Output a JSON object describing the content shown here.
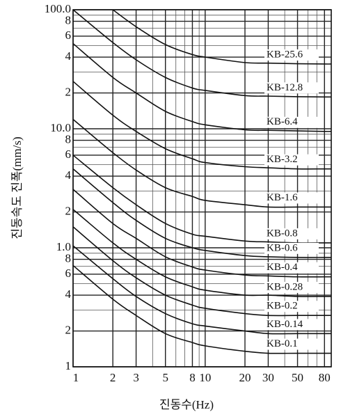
{
  "chart_data": {
    "type": "line",
    "x_label": "진동수(Hz)",
    "y_label": "진동속도 진폭(mm/s)",
    "x_log": true,
    "y_log": true,
    "grid": true,
    "minor_grid": true,
    "xlim": [
      1,
      90
    ],
    "ylim": [
      0.1,
      100
    ],
    "xticks": [
      1,
      2,
      3,
      5,
      8,
      10,
      20,
      30,
      50,
      80
    ],
    "yticks": [
      {
        "value": 100,
        "label": "100.0"
      },
      {
        "value": 80,
        "label": "8"
      },
      {
        "value": 60,
        "label": "6"
      },
      {
        "value": 40,
        "label": "4"
      },
      {
        "value": 20,
        "label": "2"
      },
      {
        "value": 10,
        "label": "10.0"
      },
      8,
      6,
      4,
      2,
      {
        "value": 1,
        "label": "1.0"
      },
      {
        "value": 0.8,
        "label": "8"
      },
      {
        "value": 0.6,
        "label": "6"
      },
      {
        "value": 0.4,
        "label": "4"
      },
      {
        "value": 0.2,
        "label": "2"
      },
      {
        "value": 0.1,
        "label": "1"
      }
    ],
    "x": [
      1,
      2,
      3,
      5,
      8,
      10,
      20,
      30,
      50,
      80,
      90
    ],
    "series": [
      {
        "name": "KB-25.6",
        "color": "#111",
        "values": [
          null,
          100,
          72,
          51,
          42,
          40,
          36,
          35.6,
          35.2,
          35,
          35
        ]
      },
      {
        "name": "KB-12.8",
        "color": "#111",
        "values": [
          100,
          53,
          38,
          27,
          22,
          21,
          19,
          18.8,
          18.6,
          18.5,
          18.5
        ]
      },
      {
        "name": "KB-6.4",
        "color": "#111",
        "values": [
          52,
          27,
          20,
          14,
          11.5,
          10.8,
          9.8,
          9.7,
          9.6,
          9.5,
          9.5
        ]
      },
      {
        "name": "KB-3.2",
        "color": "#111",
        "values": [
          25,
          13,
          9.5,
          6.8,
          5.6,
          5.2,
          4.8,
          4.7,
          4.6,
          4.6,
          4.6
        ]
      },
      {
        "name": "KB-1.6",
        "color": "#111",
        "values": [
          12,
          6.3,
          4.5,
          3.2,
          2.7,
          2.5,
          2.3,
          2.2,
          2.2,
          2.2,
          2.2
        ]
      },
      {
        "name": "KB-0.8",
        "color": "#111",
        "values": [
          6,
          3.2,
          2.3,
          1.6,
          1.3,
          1.25,
          1.14,
          1.12,
          1.1,
          1.1,
          1.1
        ]
      },
      {
        "name": "KB-0.6",
        "color": "#111",
        "values": [
          4.6,
          2.4,
          1.7,
          1.2,
          1,
          0.95,
          0.86,
          0.84,
          0.83,
          0.83,
          0.83
        ]
      },
      {
        "name": "KB-0.4",
        "color": "#111",
        "values": [
          3.1,
          1.6,
          1.2,
          0.84,
          0.69,
          0.65,
          0.59,
          0.58,
          0.57,
          0.57,
          0.57
        ]
      },
      {
        "name": "KB-0.28",
        "color": "#111",
        "values": [
          2.1,
          1.1,
          0.8,
          0.57,
          0.47,
          0.44,
          0.4,
          0.4,
          0.39,
          0.39,
          0.39
        ]
      },
      {
        "name": "KB-0.2",
        "color": "#111",
        "values": [
          1.5,
          0.78,
          0.56,
          0.4,
          0.33,
          0.31,
          0.28,
          0.27,
          0.27,
          0.27,
          0.27
        ]
      },
      {
        "name": "KB-0.14",
        "color": "#111",
        "values": [
          1.04,
          0.55,
          0.39,
          0.28,
          0.23,
          0.22,
          0.2,
          0.19,
          0.19,
          0.19,
          0.19
        ]
      },
      {
        "name": "KB-0.1",
        "color": "#111",
        "values": [
          0.71,
          0.37,
          0.27,
          0.19,
          0.16,
          0.15,
          0.135,
          0.13,
          0.13,
          0.13,
          0.13
        ]
      }
    ]
  }
}
